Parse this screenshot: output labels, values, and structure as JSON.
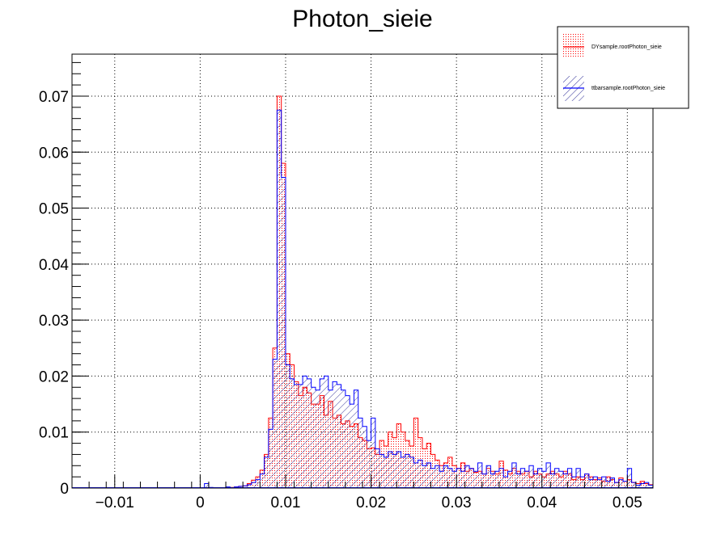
{
  "chart_data": {
    "type": "bar",
    "histogram": true,
    "title": "Photon_sieie",
    "xlabel": "",
    "ylabel": "",
    "xlim": [
      -0.015,
      0.053
    ],
    "ylim": [
      0,
      0.0775
    ],
    "grid": true,
    "legend_position": "top-right",
    "x_tick_labels": [
      "−0.01",
      "0",
      "0.01",
      "0.02",
      "0.03",
      "0.04",
      "0.05"
    ],
    "x_tick_values": [
      -0.01,
      0,
      0.01,
      0.02,
      0.03,
      0.04,
      0.05
    ],
    "y_tick_labels": [
      "0",
      "0.01",
      "0.02",
      "0.03",
      "0.04",
      "0.05",
      "0.06",
      "0.07"
    ],
    "y_tick_values": [
      0,
      0.01,
      0.02,
      0.03,
      0.04,
      0.05,
      0.06,
      0.07
    ],
    "bin_width": 0.0005,
    "series": [
      {
        "name": "DYsample.rootPhoton_sieie",
        "color": "#ff0000",
        "fill": "dots",
        "points": [
          [
            0.0035,
            0.0001
          ],
          [
            0.004,
            0.0002
          ],
          [
            0.0045,
            0.0003
          ],
          [
            0.005,
            0.0004
          ],
          [
            0.0055,
            0.0008
          ],
          [
            0.006,
            0.0014
          ],
          [
            0.0065,
            0.002
          ],
          [
            0.007,
            0.0032
          ],
          [
            0.0075,
            0.006
          ],
          [
            0.008,
            0.0125
          ],
          [
            0.0085,
            0.025
          ],
          [
            0.009,
            0.07
          ],
          [
            0.0095,
            0.058
          ],
          [
            0.01,
            0.024
          ],
          [
            0.0105,
            0.022
          ],
          [
            0.011,
            0.019
          ],
          [
            0.0115,
            0.0165
          ],
          [
            0.012,
            0.018
          ],
          [
            0.0125,
            0.017
          ],
          [
            0.013,
            0.015
          ],
          [
            0.0135,
            0.015
          ],
          [
            0.014,
            0.0165
          ],
          [
            0.0145,
            0.013
          ],
          [
            0.015,
            0.0155
          ],
          [
            0.0155,
            0.0125
          ],
          [
            0.016,
            0.013
          ],
          [
            0.0165,
            0.0115
          ],
          [
            0.017,
            0.012
          ],
          [
            0.0175,
            0.011
          ],
          [
            0.018,
            0.0115
          ],
          [
            0.0185,
            0.009
          ],
          [
            0.019,
            0.0085
          ],
          [
            0.0195,
            0.007
          ],
          [
            0.02,
            0.0072
          ],
          [
            0.0205,
            0.006
          ],
          [
            0.021,
            0.0085
          ],
          [
            0.0215,
            0.0075
          ],
          [
            0.022,
            0.01
          ],
          [
            0.0225,
            0.009
          ],
          [
            0.023,
            0.0115
          ],
          [
            0.0235,
            0.01
          ],
          [
            0.024,
            0.0085
          ],
          [
            0.0245,
            0.0075
          ],
          [
            0.025,
            0.0125
          ],
          [
            0.0255,
            0.009
          ],
          [
            0.026,
            0.007
          ],
          [
            0.0265,
            0.008
          ],
          [
            0.027,
            0.006
          ],
          [
            0.0275,
            0.005
          ],
          [
            0.028,
            0.004
          ],
          [
            0.0285,
            0.0045
          ],
          [
            0.029,
            0.0055
          ],
          [
            0.0295,
            0.004
          ],
          [
            0.03,
            0.0035
          ],
          [
            0.0305,
            0.0045
          ],
          [
            0.031,
            0.003
          ],
          [
            0.0315,
            0.0035
          ],
          [
            0.032,
            0.0028
          ],
          [
            0.0325,
            0.003
          ],
          [
            0.033,
            0.0025
          ],
          [
            0.0335,
            0.0035
          ],
          [
            0.034,
            0.003
          ],
          [
            0.0345,
            0.0025
          ],
          [
            0.035,
            0.0048
          ],
          [
            0.0355,
            0.0032
          ],
          [
            0.036,
            0.0025
          ],
          [
            0.0365,
            0.0035
          ],
          [
            0.037,
            0.003
          ],
          [
            0.0375,
            0.0025
          ],
          [
            0.038,
            0.003
          ],
          [
            0.0385,
            0.002
          ],
          [
            0.039,
            0.003
          ],
          [
            0.0395,
            0.0025
          ],
          [
            0.04,
            0.002
          ],
          [
            0.0405,
            0.0025
          ],
          [
            0.041,
            0.003
          ],
          [
            0.0415,
            0.0025
          ],
          [
            0.042,
            0.002
          ],
          [
            0.0425,
            0.003
          ],
          [
            0.043,
            0.0025
          ],
          [
            0.0435,
            0.0015
          ],
          [
            0.044,
            0.002
          ],
          [
            0.0445,
            0.0015
          ],
          [
            0.045,
            0.0025
          ],
          [
            0.0455,
            0.002
          ],
          [
            0.046,
            0.0015
          ],
          [
            0.0465,
            0.0018
          ],
          [
            0.047,
            0.0012
          ],
          [
            0.0475,
            0.002
          ],
          [
            0.048,
            0.0015
          ],
          [
            0.0485,
            0.001
          ],
          [
            0.049,
            0.0018
          ],
          [
            0.0495,
            0.0012
          ],
          [
            0.05,
            0.0015
          ],
          [
            0.0505,
            0.001
          ],
          [
            0.051,
            0.0008
          ],
          [
            0.0515,
            0.0012
          ],
          [
            0.052,
            0.0008
          ],
          [
            0.0525,
            0.0006
          ]
        ]
      },
      {
        "name": "ttbarsample.rootPhoton_sieie",
        "color": "#0000ff",
        "fill": "hatch",
        "points": [
          [
            0.0005,
            0.0008
          ],
          [
            0.001,
            0.0001
          ],
          [
            0.003,
            0.0002
          ],
          [
            0.004,
            0.0002
          ],
          [
            0.0045,
            0.0003
          ],
          [
            0.005,
            0.0004
          ],
          [
            0.0055,
            0.0006
          ],
          [
            0.006,
            0.001
          ],
          [
            0.0065,
            0.0015
          ],
          [
            0.007,
            0.0025
          ],
          [
            0.0075,
            0.0055
          ],
          [
            0.008,
            0.0105
          ],
          [
            0.0085,
            0.023
          ],
          [
            0.009,
            0.0675
          ],
          [
            0.0095,
            0.0555
          ],
          [
            0.01,
            0.022
          ],
          [
            0.0105,
            0.0195
          ],
          [
            0.011,
            0.0185
          ],
          [
            0.0115,
            0.0185
          ],
          [
            0.012,
            0.02
          ],
          [
            0.0125,
            0.0195
          ],
          [
            0.013,
            0.018
          ],
          [
            0.0135,
            0.0175
          ],
          [
            0.014,
            0.0195
          ],
          [
            0.0145,
            0.02
          ],
          [
            0.015,
            0.0175
          ],
          [
            0.0155,
            0.019
          ],
          [
            0.016,
            0.0185
          ],
          [
            0.0165,
            0.0175
          ],
          [
            0.017,
            0.0165
          ],
          [
            0.0175,
            0.015
          ],
          [
            0.018,
            0.0175
          ],
          [
            0.0185,
            0.0125
          ],
          [
            0.019,
            0.011
          ],
          [
            0.0195,
            0.0085
          ],
          [
            0.02,
            0.0125
          ],
          [
            0.0205,
            0.007
          ],
          [
            0.021,
            0.006
          ],
          [
            0.0215,
            0.0055
          ],
          [
            0.022,
            0.0065
          ],
          [
            0.0225,
            0.006
          ],
          [
            0.023,
            0.0065
          ],
          [
            0.0235,
            0.0055
          ],
          [
            0.024,
            0.006
          ],
          [
            0.0245,
            0.0055
          ],
          [
            0.025,
            0.0045
          ],
          [
            0.0255,
            0.005
          ],
          [
            0.026,
            0.004
          ],
          [
            0.0265,
            0.0045
          ],
          [
            0.027,
            0.0035
          ],
          [
            0.0275,
            0.004
          ],
          [
            0.028,
            0.003
          ],
          [
            0.0285,
            0.004
          ],
          [
            0.029,
            0.0035
          ],
          [
            0.0295,
            0.003
          ],
          [
            0.03,
            0.0035
          ],
          [
            0.0305,
            0.003
          ],
          [
            0.031,
            0.004
          ],
          [
            0.0315,
            0.0035
          ],
          [
            0.032,
            0.003
          ],
          [
            0.0325,
            0.0045
          ],
          [
            0.033,
            0.0025
          ],
          [
            0.0335,
            0.004
          ],
          [
            0.034,
            0.0025
          ],
          [
            0.0345,
            0.003
          ],
          [
            0.035,
            0.0035
          ],
          [
            0.0355,
            0.002
          ],
          [
            0.036,
            0.003
          ],
          [
            0.0365,
            0.0045
          ],
          [
            0.037,
            0.0025
          ],
          [
            0.0375,
            0.0035
          ],
          [
            0.038,
            0.003
          ],
          [
            0.0385,
            0.004
          ],
          [
            0.039,
            0.0025
          ],
          [
            0.0395,
            0.0035
          ],
          [
            0.04,
            0.003
          ],
          [
            0.0405,
            0.0045
          ],
          [
            0.041,
            0.0025
          ],
          [
            0.0415,
            0.0035
          ],
          [
            0.042,
            0.003
          ],
          [
            0.0425,
            0.0025
          ],
          [
            0.043,
            0.0035
          ],
          [
            0.0435,
            0.002
          ],
          [
            0.044,
            0.0035
          ],
          [
            0.0445,
            0.002
          ],
          [
            0.045,
            0.0025
          ],
          [
            0.0455,
            0.0015
          ],
          [
            0.046,
            0.002
          ],
          [
            0.0465,
            0.0015
          ],
          [
            0.047,
            0.002
          ],
          [
            0.0475,
            0.0012
          ],
          [
            0.048,
            0.0018
          ],
          [
            0.0485,
            0.001
          ],
          [
            0.049,
            0.0015
          ],
          [
            0.0495,
            0.0012
          ],
          [
            0.05,
            0.0035
          ],
          [
            0.0505,
            0.001
          ],
          [
            0.051,
            0.0005
          ],
          [
            0.0515,
            0.0008
          ],
          [
            0.052,
            0.001
          ],
          [
            0.0525,
            0.0005
          ]
        ]
      }
    ]
  }
}
